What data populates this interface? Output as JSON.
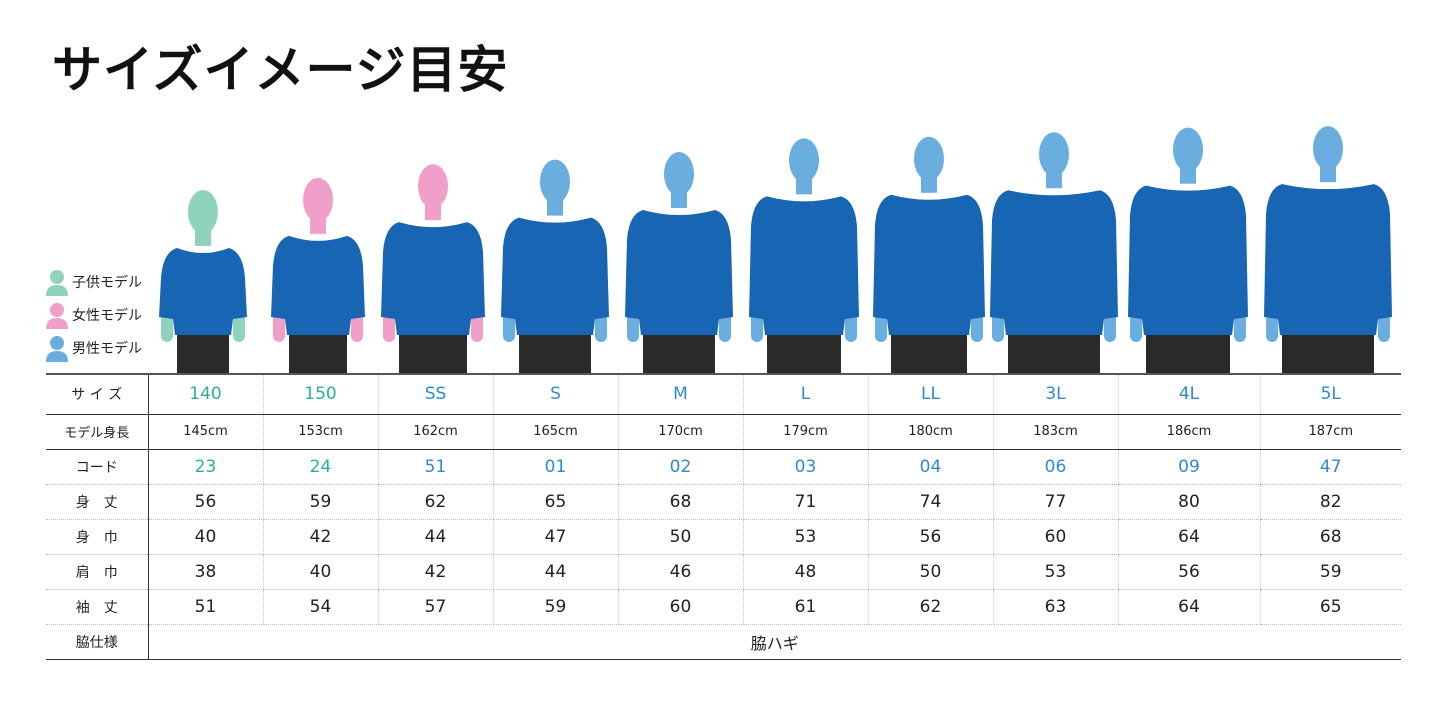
{
  "title": "サイズイメージ目安",
  "colors": {
    "child": "#8fd3bf",
    "female": "#f0a0c8",
    "male": "#6aaee0",
    "shirt": "#1765b3",
    "shorts": "#2a2a2a",
    "teal_text": "#2ab09a",
    "blue_text": "#2e8bc9"
  },
  "legend": [
    {
      "label": "子供モデル",
      "type": "child"
    },
    {
      "label": "女性モデル",
      "type": "female"
    },
    {
      "label": "男性モデル",
      "type": "male"
    }
  ],
  "table": {
    "row_labels": {
      "size": "サ イ ズ",
      "height": "モデル身長",
      "code": "コード",
      "length": "身　丈",
      "width": "身　巾",
      "shoulder": "肩　巾",
      "sleeve": "袖　丈",
      "side": "脇仕様"
    },
    "columns": [
      {
        "size": "140",
        "model": "child",
        "height": "145cm",
        "code": "23",
        "length": "56",
        "width": "40",
        "shoulder": "38",
        "sleeve": "51"
      },
      {
        "size": "150",
        "model": "female",
        "height": "153cm",
        "code": "24",
        "length": "59",
        "width": "42",
        "shoulder": "40",
        "sleeve": "54"
      },
      {
        "size": "SS",
        "model": "female",
        "height": "162cm",
        "code": "51",
        "length": "62",
        "width": "44",
        "shoulder": "42",
        "sleeve": "57"
      },
      {
        "size": "S",
        "model": "male",
        "height": "165cm",
        "code": "01",
        "length": "65",
        "width": "47",
        "shoulder": "44",
        "sleeve": "59"
      },
      {
        "size": "M",
        "model": "male",
        "height": "170cm",
        "code": "02",
        "length": "68",
        "width": "50",
        "shoulder": "46",
        "sleeve": "60"
      },
      {
        "size": "L",
        "model": "male",
        "height": "179cm",
        "code": "03",
        "length": "71",
        "width": "53",
        "shoulder": "48",
        "sleeve": "61"
      },
      {
        "size": "LL",
        "model": "male",
        "height": "180cm",
        "code": "04",
        "length": "74",
        "width": "56",
        "shoulder": "50",
        "sleeve": "62"
      },
      {
        "size": "3L",
        "model": "male",
        "height": "183cm",
        "code": "06",
        "length": "77",
        "width": "60",
        "shoulder": "53",
        "sleeve": "63"
      },
      {
        "size": "4L",
        "model": "male",
        "height": "186cm",
        "code": "09",
        "length": "80",
        "width": "64",
        "shoulder": "56",
        "sleeve": "64"
      },
      {
        "size": "5L",
        "model": "male",
        "height": "187cm",
        "code": "47",
        "length": "82",
        "width": "68",
        "shoulder": "59",
        "sleeve": "65"
      }
    ],
    "side_value": "脇ハギ"
  }
}
